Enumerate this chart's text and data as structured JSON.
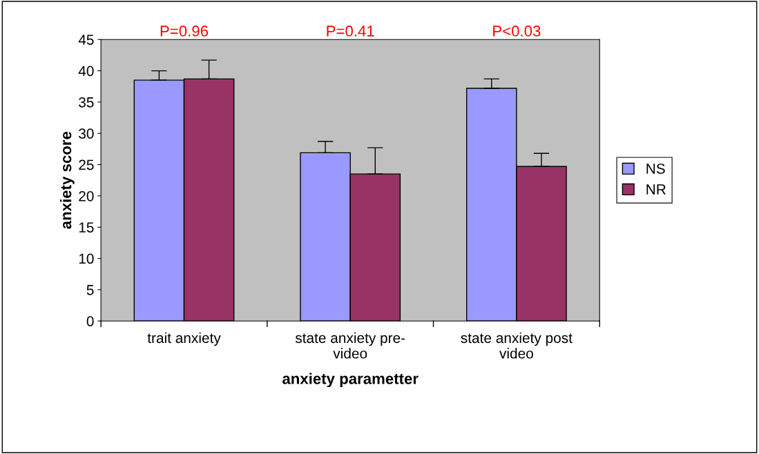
{
  "chart_data": {
    "type": "bar",
    "xlabel": "anxiety parametter",
    "ylabel": "anxiety score",
    "categories": [
      "trait anxiety",
      "state anxiety pre-\nvideo",
      "state anxiety post\nvideo"
    ],
    "series": [
      {
        "name": "NS",
        "color": "#9999ff",
        "values": [
          38.5,
          26.9,
          37.2
        ],
        "errors": [
          [
            38.5,
            40.0
          ],
          [
            26.9,
            28.7
          ],
          [
            37.2,
            38.7
          ]
        ]
      },
      {
        "name": "NR",
        "color": "#993366",
        "values": [
          38.7,
          23.5,
          24.7
        ],
        "errors": [
          [
            38.7,
            41.7
          ],
          [
            23.5,
            27.7
          ],
          [
            24.7,
            26.8
          ]
        ]
      }
    ],
    "ylim": [
      0,
      45
    ],
    "yticks": [
      0,
      5,
      10,
      15,
      20,
      25,
      30,
      35,
      40,
      45
    ],
    "annotations": [
      "P=0.96",
      "P=0.41",
      "P<0.03"
    ],
    "grid": false,
    "legend": "right"
  }
}
